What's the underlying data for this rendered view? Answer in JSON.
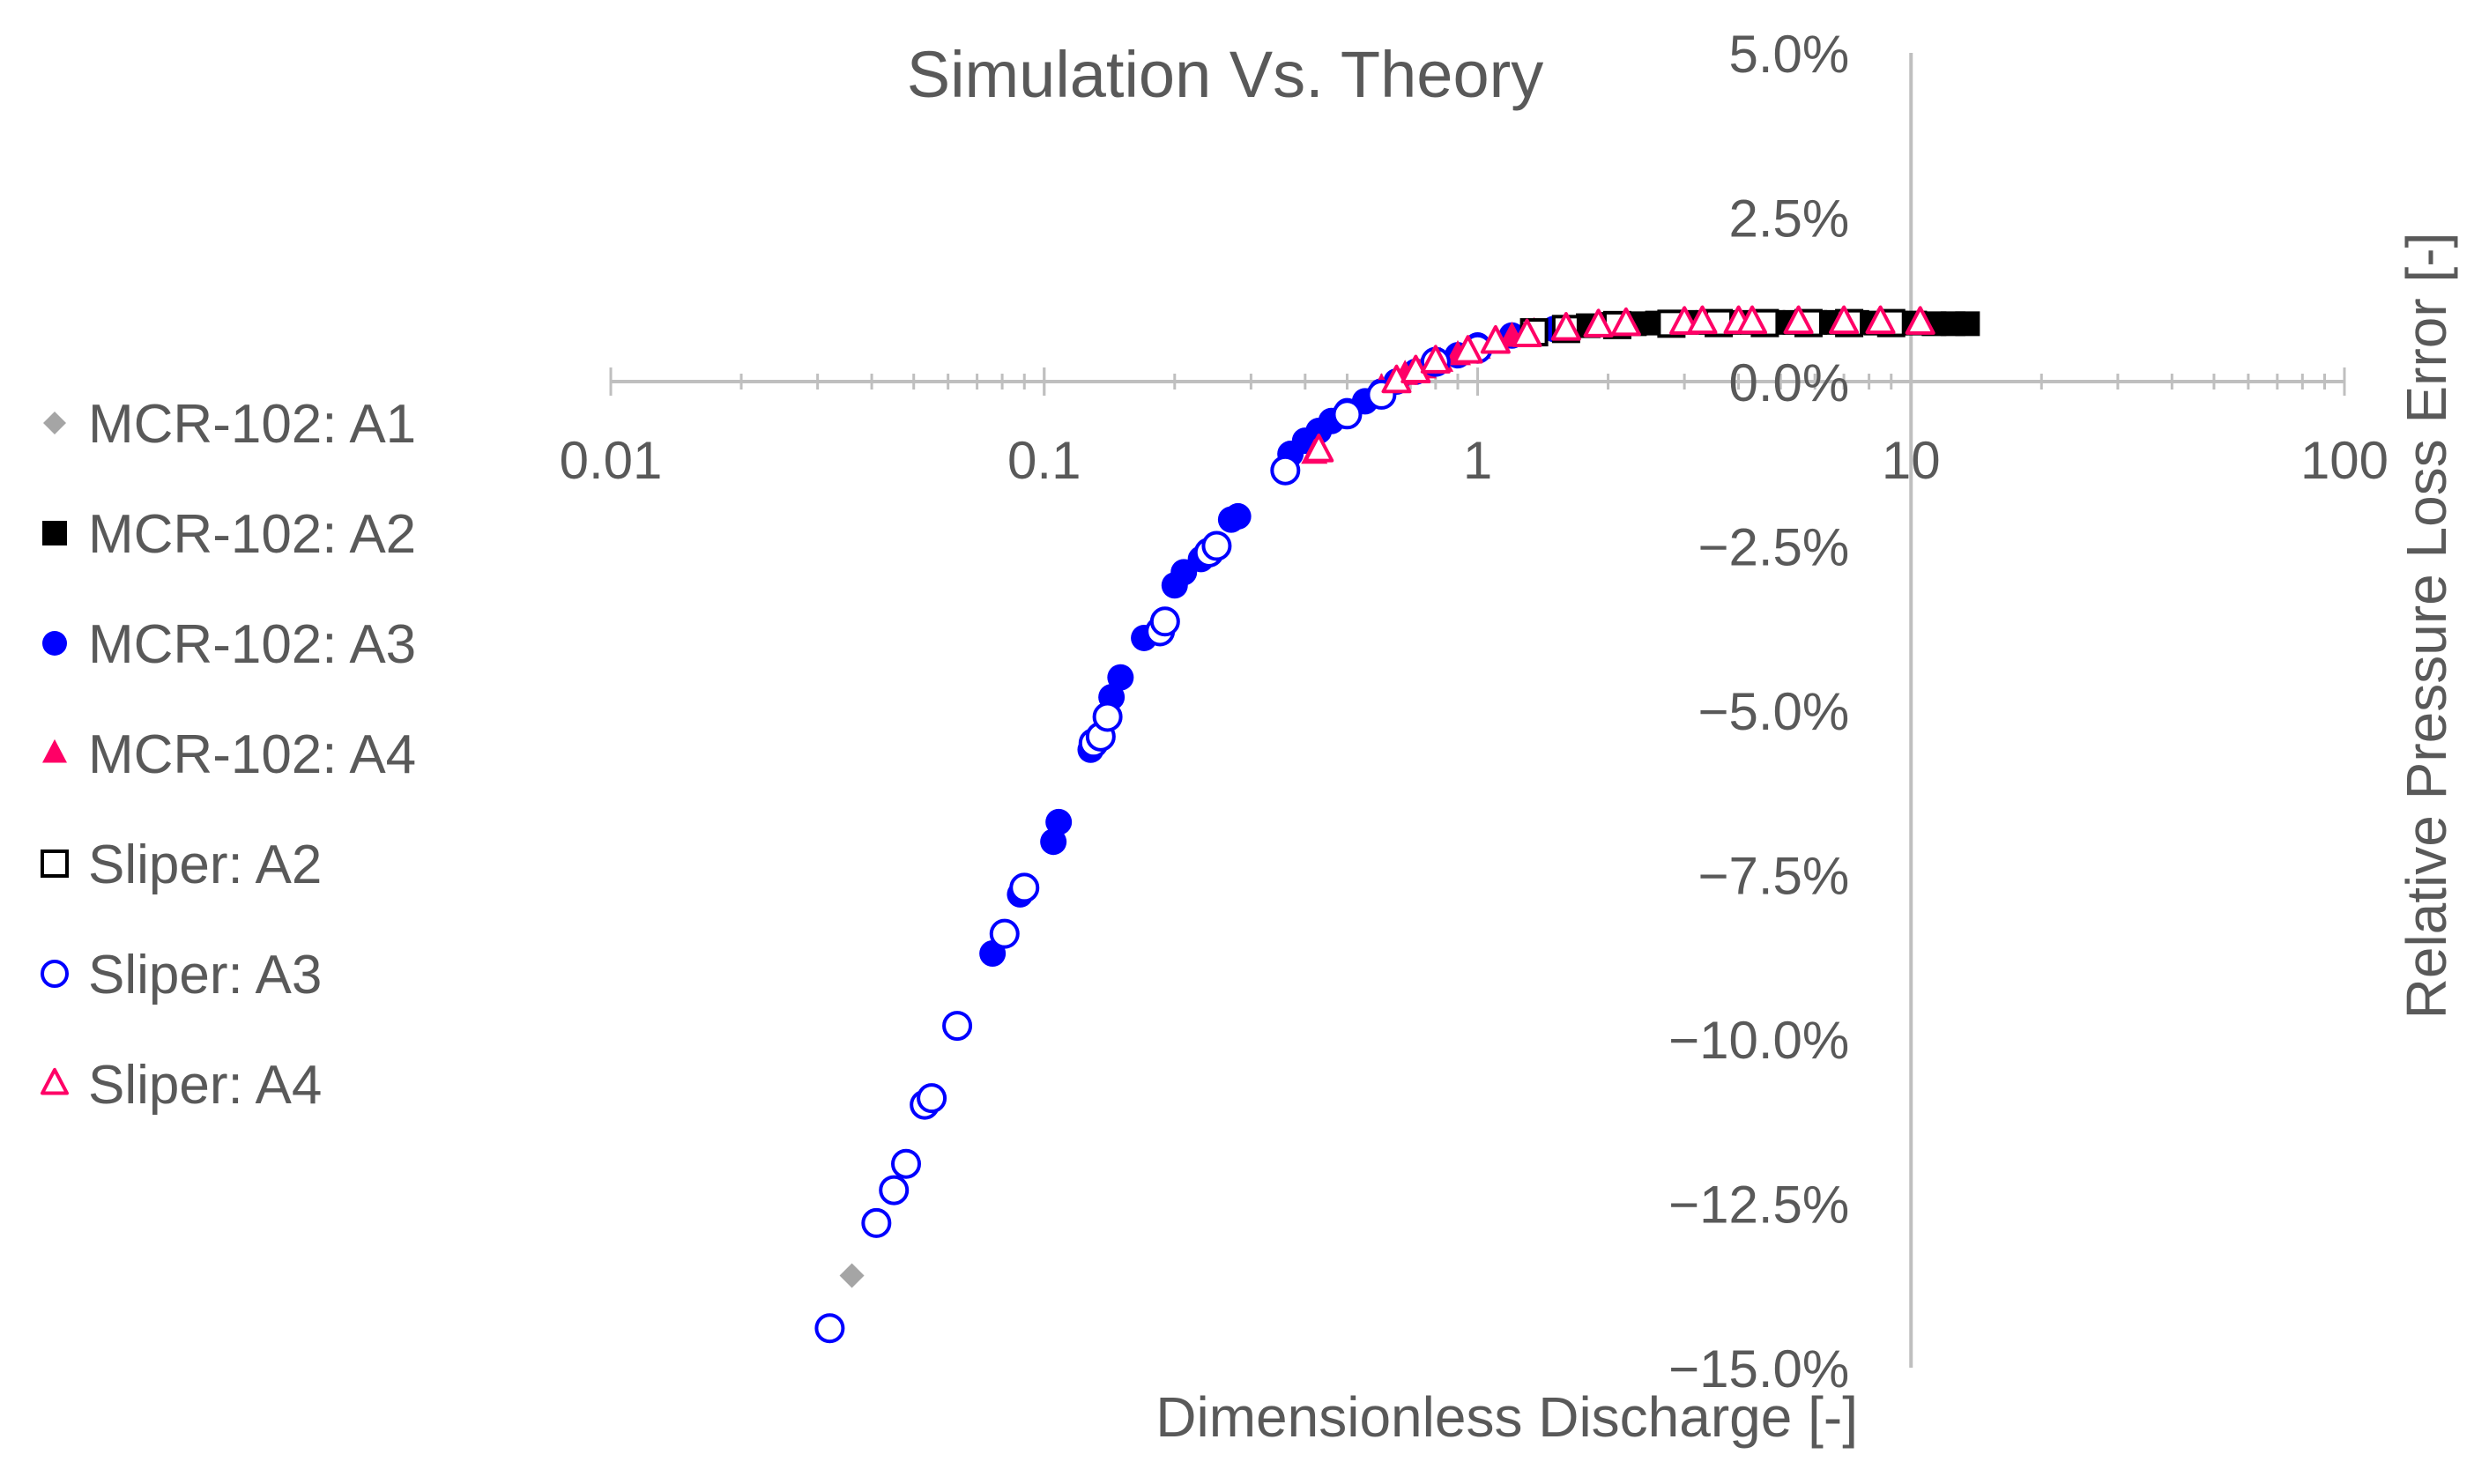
{
  "chart_data": {
    "type": "scatter",
    "title": "Simulation Vs. Theory",
    "xlabel": "Dimensionless Discharge [-]",
    "ylabel": "Relative Pressure Loss Error [-]",
    "x_scale": "log",
    "xlim": [
      0.01,
      100
    ],
    "ylim": [
      -0.15,
      0.05
    ],
    "x_ticks": [
      {
        "value": 0.01,
        "label": "0.01"
      },
      {
        "value": 0.1,
        "label": "0.1"
      },
      {
        "value": 1,
        "label": "1"
      },
      {
        "value": 10,
        "label": "10"
      },
      {
        "value": 100,
        "label": "100"
      }
    ],
    "y_ticks": [
      {
        "value": 0.05,
        "label": "5.0%"
      },
      {
        "value": 0.025,
        "label": "2.5%"
      },
      {
        "value": 0.0,
        "label": "0.0%"
      },
      {
        "value": -0.025,
        "label": "−2.5%"
      },
      {
        "value": -0.05,
        "label": "−5.0%"
      },
      {
        "value": -0.075,
        "label": "−7.5%"
      },
      {
        "value": -0.1,
        "label": "−10.0%"
      },
      {
        "value": -0.125,
        "label": "−12.5%"
      },
      {
        "value": -0.15,
        "label": "−15.0%"
      }
    ],
    "legend_position": "left",
    "grid": false,
    "series": [
      {
        "name": "MCR-102: A1",
        "marker": "diamond",
        "filled": true,
        "color": "#A5A5A5",
        "points": [
          [
            0.036,
            -0.136
          ]
        ]
      },
      {
        "name": "MCR-102: A2",
        "marker": "square",
        "filled": true,
        "color": "#000000",
        "points": [
          [
            1.8,
            0.0085
          ],
          [
            2.0,
            0.0087
          ],
          [
            2.3,
            0.0088
          ],
          [
            2.6,
            0.0089
          ],
          [
            3.0,
            0.009
          ],
          [
            3.4,
            0.009
          ],
          [
            3.8,
            0.009
          ],
          [
            4.3,
            0.009
          ],
          [
            4.8,
            0.009
          ],
          [
            5.4,
            0.009
          ],
          [
            6.0,
            0.009
          ],
          [
            6.7,
            0.009
          ],
          [
            7.5,
            0.009
          ],
          [
            8.3,
            0.0089
          ],
          [
            9.2,
            0.0089
          ],
          [
            10.2,
            0.0089
          ],
          [
            11.3,
            0.0088
          ],
          [
            12.5,
            0.0088
          ],
          [
            13.5,
            0.0088
          ]
        ]
      },
      {
        "name": "MCR-102: A3",
        "marker": "circle",
        "filled": true,
        "color": "#0000FF",
        "points": [
          [
            0.076,
            -0.087
          ],
          [
            0.088,
            -0.078
          ],
          [
            0.105,
            -0.07
          ],
          [
            0.108,
            -0.067
          ],
          [
            0.128,
            -0.056
          ],
          [
            0.143,
            -0.048
          ],
          [
            0.15,
            -0.045
          ],
          [
            0.17,
            -0.039
          ],
          [
            0.2,
            -0.031
          ],
          [
            0.21,
            -0.029
          ],
          [
            0.23,
            -0.027
          ],
          [
            0.27,
            -0.021
          ],
          [
            0.28,
            -0.0205
          ],
          [
            0.37,
            -0.011
          ],
          [
            0.4,
            -0.009
          ],
          [
            0.43,
            -0.0075
          ],
          [
            0.46,
            -0.006
          ],
          [
            0.5,
            -0.0045
          ],
          [
            0.55,
            -0.003
          ],
          [
            0.6,
            -0.0015
          ],
          [
            0.65,
            0.0
          ],
          [
            0.72,
            0.0015
          ],
          [
            0.8,
            0.003
          ],
          [
            0.9,
            0.004
          ],
          [
            1.0,
            0.0055
          ],
          [
            1.2,
            0.007
          ],
          [
            1.5,
            0.008
          ]
        ]
      },
      {
        "name": "MCR-102: A4",
        "marker": "triangle",
        "filled": true,
        "color": "#FF0066",
        "points": [
          [
            0.42,
            -0.011
          ],
          [
            0.6,
            -0.001
          ],
          [
            0.68,
            0.001
          ],
          [
            0.75,
            0.002
          ],
          [
            0.82,
            0.003
          ],
          [
            0.9,
            0.004
          ],
          [
            1.0,
            0.005
          ],
          [
            1.1,
            0.006
          ],
          [
            1.2,
            0.0068
          ],
          [
            1.35,
            0.0075
          ]
        ]
      },
      {
        "name": "Sliper: A2",
        "marker": "square",
        "filled": false,
        "color": "#000000",
        "points": [
          [
            1.35,
            0.0075
          ],
          [
            1.6,
            0.008
          ],
          [
            2.1,
            0.0086
          ],
          [
            2.8,
            0.0088
          ],
          [
            3.6,
            0.0089
          ],
          [
            4.6,
            0.0089
          ],
          [
            5.8,
            0.0089
          ],
          [
            7.2,
            0.0089
          ],
          [
            9.0,
            0.0089
          ]
        ]
      },
      {
        "name": "Sliper: A3",
        "marker": "circle",
        "filled": false,
        "color": "#0000FF",
        "points": [
          [
            0.032,
            -0.144
          ],
          [
            0.041,
            -0.128
          ],
          [
            0.045,
            -0.123
          ],
          [
            0.048,
            -0.119
          ],
          [
            0.053,
            -0.11
          ],
          [
            0.055,
            -0.109
          ],
          [
            0.063,
            -0.098
          ],
          [
            0.081,
            -0.084
          ],
          [
            0.09,
            -0.077
          ],
          [
            0.13,
            -0.055
          ],
          [
            0.135,
            -0.054
          ],
          [
            0.14,
            -0.051
          ],
          [
            0.185,
            -0.038
          ],
          [
            0.19,
            -0.0365
          ],
          [
            0.24,
            -0.026
          ],
          [
            0.25,
            -0.025
          ],
          [
            0.36,
            -0.0135
          ],
          [
            0.5,
            -0.005
          ],
          [
            0.6,
            -0.002
          ],
          [
            0.8,
            0.003
          ],
          [
            1.0,
            0.005
          ]
        ]
      },
      {
        "name": "Sliper: A4",
        "marker": "triangle",
        "filled": false,
        "color": "#FF0066",
        "points": [
          [
            0.43,
            -0.0105
          ],
          [
            0.65,
            0.0
          ],
          [
            0.72,
            0.0015
          ],
          [
            0.8,
            0.003
          ],
          [
            0.95,
            0.0045
          ],
          [
            1.1,
            0.006
          ],
          [
            1.3,
            0.007
          ],
          [
            1.6,
            0.008
          ],
          [
            1.9,
            0.0085
          ],
          [
            2.2,
            0.0087
          ],
          [
            3.0,
            0.0089
          ],
          [
            3.3,
            0.009
          ],
          [
            4.0,
            0.009
          ],
          [
            4.3,
            0.009
          ],
          [
            5.5,
            0.009
          ],
          [
            7.0,
            0.009
          ],
          [
            8.5,
            0.009
          ],
          [
            10.5,
            0.0089
          ]
        ]
      }
    ]
  }
}
